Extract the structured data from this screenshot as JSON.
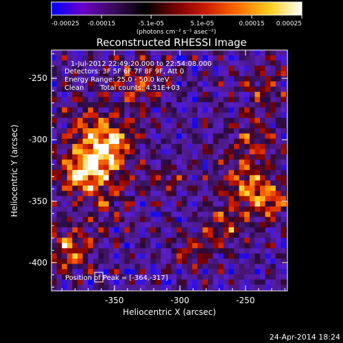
{
  "chart_data": {
    "type": "heatmap",
    "title": "Reconstructed RHESSI Image",
    "xlabel": "Heliocentric X (arcsec)",
    "ylabel": "Heliocentric Y (arcsec)",
    "xlim": [
      -398,
      -218
    ],
    "ylim": [
      -423,
      -227
    ],
    "xticks": [
      {
        "value": -350,
        "label": "-350"
      },
      {
        "value": -300,
        "label": "-300"
      },
      {
        "value": -250,
        "label": "-250"
      }
    ],
    "yticks": [
      {
        "value": -250,
        "label": "-250"
      },
      {
        "value": -300,
        "label": "-300"
      },
      {
        "value": -350,
        "label": "-350"
      },
      {
        "value": -400,
        "label": "-400"
      }
    ],
    "colorbar": {
      "range": [
        -0.00025,
        0.00025
      ],
      "ticks": [
        {
          "value": -0.00025,
          "label": "-0.00025"
        },
        {
          "value": -0.00015,
          "label": "-0.00015"
        },
        {
          "value": -5.1e-05,
          "label": "-5.1e-05"
        },
        {
          "value": 5.1e-05,
          "label": "5.1e-05"
        },
        {
          "value": 0.00015,
          "label": "0.00015"
        },
        {
          "value": 0.00025,
          "label": "0.00025"
        }
      ],
      "unit_label": "(photons cm⁻² s⁻¹ asec⁻²)",
      "colors": [
        "#0000ff",
        "#6a00c8",
        "#3a0a5a",
        "#000000",
        "#7a0000",
        "#d02000",
        "#ff7000",
        "#ffd020",
        "#ffffff"
      ]
    },
    "annotations": {
      "time": "1-Jul-2012 22:49:20.000 to 22:54:08.000",
      "detectors": "Detectors: 3F 5F 6F 7F 8F 9F, Att 0",
      "energy": "Energy Range: 25.0 - 50.0 keV",
      "method": "Clean",
      "counts": "Total counts: 4.31E+03",
      "peak": "Position of Peak = [-364,-317]"
    },
    "peak_position": [
      -364,
      -317
    ]
  },
  "footer": {
    "timestamp": "24-Apr-2014 18:24"
  }
}
